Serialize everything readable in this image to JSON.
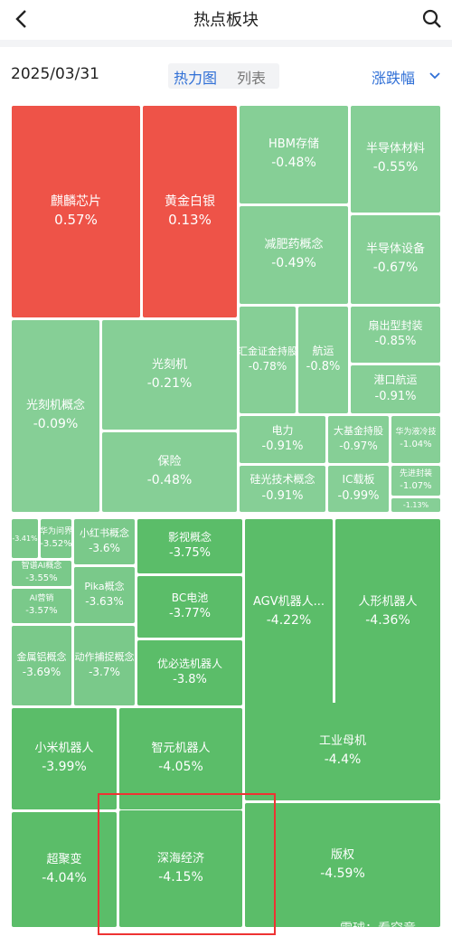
{
  "header": {
    "title": "热点板块"
  },
  "toolbar": {
    "date": "2025/03/31",
    "tabs": [
      "热力图",
      "列表"
    ],
    "sort": "涨跌幅"
  },
  "tiles": [
    {
      "name": "麒麟芯片",
      "change": "0.57%"
    },
    {
      "name": "黄金白银",
      "change": "0.13%"
    },
    {
      "name": "HBM存储",
      "change": "-0.48%"
    },
    {
      "name": "半导体材料",
      "change": "-0.55%"
    },
    {
      "name": "减肥药概念",
      "change": "-0.49%"
    },
    {
      "name": "半导体设备",
      "change": "-0.67%"
    },
    {
      "name": "光刻机概念",
      "change": "-0.09%"
    },
    {
      "name": "光刻机",
      "change": "-0.21%"
    },
    {
      "name": "保险",
      "change": "-0.48%"
    },
    {
      "name": "汇金证金持股",
      "change": "-0.78%"
    },
    {
      "name": "航运",
      "change": "-0.8%"
    },
    {
      "name": "扇出型封装",
      "change": "-0.85%"
    },
    {
      "name": "港口航运",
      "change": "-0.91%"
    },
    {
      "name": "电力",
      "change": "-0.91%"
    },
    {
      "name": "大基金持股",
      "change": "-0.97%"
    },
    {
      "name": "华为液冷技",
      "change": "-1.04%"
    },
    {
      "name": "硅光技术概念",
      "change": "-0.91%"
    },
    {
      "name": "IC载板",
      "change": "-0.99%"
    },
    {
      "name": "先进封装",
      "change": "-1.07%"
    },
    {
      "name": null,
      "change": "-1.13%"
    },
    {
      "name": null,
      "change": "-3.41%"
    },
    {
      "name": "华为问界",
      "change": "-3.52%"
    },
    {
      "name": "智谱AI概念",
      "change": "-3.55%"
    },
    {
      "name": "AI营销",
      "change": "-3.57%"
    },
    {
      "name": "小红书概念",
      "change": "-3.6%"
    },
    {
      "name": "Pika概念",
      "change": "-3.63%"
    },
    {
      "name": "金属铝概念",
      "change": "-3.69%"
    },
    {
      "name": "动作捕捉概念",
      "change": "-3.7%"
    },
    {
      "name": "影视概念",
      "change": "-3.75%"
    },
    {
      "name": "BC电池",
      "change": "-3.77%"
    },
    {
      "name": "优必选机器人",
      "change": "-3.8%"
    },
    {
      "name": "AGV机器人...",
      "change": "-4.22%"
    },
    {
      "name": "人形机器人",
      "change": "-4.36%"
    },
    {
      "name": "小米机器人",
      "change": "-3.99%"
    },
    {
      "name": "智元机器人",
      "change": "-4.05%"
    },
    {
      "name": "工业母机",
      "change": "-4.4%"
    },
    {
      "name": "超聚变",
      "change": "-4.04%"
    },
    {
      "name": "深海经济",
      "change": "-4.15%"
    },
    {
      "name": "版权",
      "change": "-4.59%"
    }
  ],
  "watermark": "雪球：看究竟"
}
